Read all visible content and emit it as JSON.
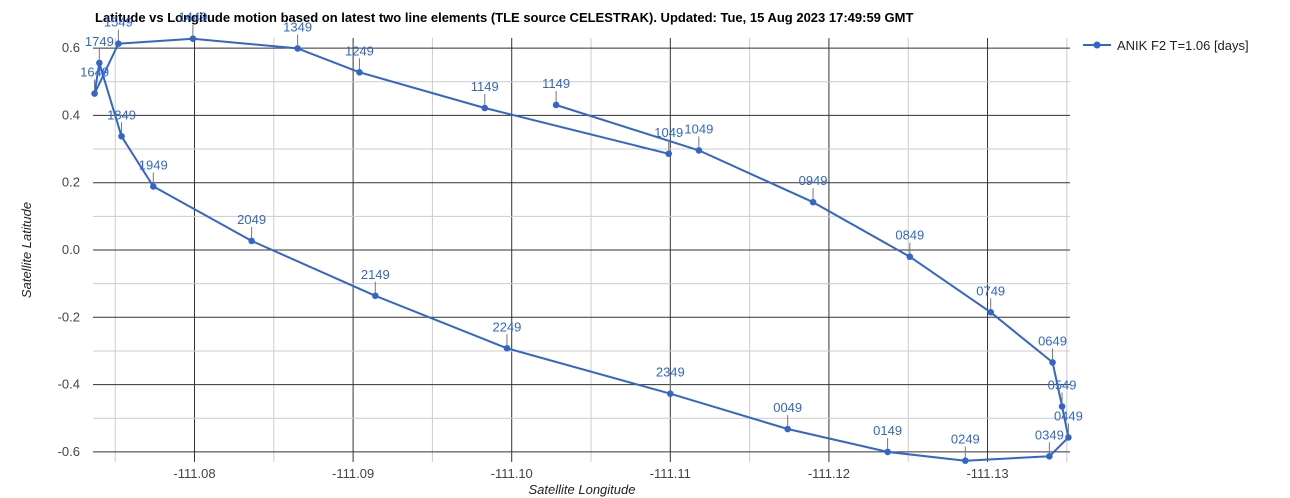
{
  "chart_data": {
    "type": "line",
    "title": "Latitude vs Longitude motion based on latest two line elements (TLE source CELESTRAK). Updated: Tue, 15 Aug 2023 17:49:59 GMT",
    "xlabel": "Satellite Longitude",
    "ylabel": "Satellite Latitude",
    "xlim": [
      -111.0736,
      -111.1352
    ],
    "ylim": [
      -0.6,
      0.6
    ],
    "x_ticks": [
      "-111.08",
      "-111.09",
      "-111.10",
      "-111.11",
      "-111.12",
      "-111.13"
    ],
    "y_ticks": [
      "0.6",
      "0.4",
      "0.2",
      "0.0",
      "-0.2",
      "-0.4",
      "-0.6"
    ],
    "grid": true,
    "legend_position": "top-right",
    "colors": {
      "series": "#3366cc",
      "major_grid": "#333333",
      "minor_grid": "#cccccc"
    },
    "series": [
      {
        "name": "ANIK F2 T=1.06 [days]",
        "points": [
          {
            "label": "1049",
            "x": -111.1099,
            "y": 0.286
          },
          {
            "label": "1149",
            "x": -111.0983,
            "y": 0.422
          },
          {
            "label": "1249",
            "x": -111.0904,
            "y": 0.528
          },
          {
            "label": "1349",
            "x": -111.0865,
            "y": 0.599
          },
          {
            "label": "1449",
            "x": -111.0799,
            "y": 0.628
          },
          {
            "label": "1549",
            "x": -111.0752,
            "y": 0.613
          },
          {
            "label": "1649",
            "x": -111.0737,
            "y": 0.465
          },
          {
            "label": "1749",
            "x": -111.074,
            "y": 0.556
          },
          {
            "label": "1849",
            "x": -111.0754,
            "y": 0.338
          },
          {
            "label": "1949",
            "x": -111.0774,
            "y": 0.189
          },
          {
            "label": "2049",
            "x": -111.0836,
            "y": 0.027
          },
          {
            "label": "2149",
            "x": -111.0914,
            "y": -0.136
          },
          {
            "label": "2249",
            "x": -111.0997,
            "y": -0.292
          },
          {
            "label": "2349",
            "x": -111.11,
            "y": -0.427
          },
          {
            "label": "0049",
            "x": -111.1174,
            "y": -0.532
          },
          {
            "label": "0149",
            "x": -111.1237,
            "y": -0.6
          },
          {
            "label": "0249",
            "x": -111.1286,
            "y": -0.626
          },
          {
            "label": "0349",
            "x": -111.1339,
            "y": -0.613
          },
          {
            "label": "0449",
            "x": -111.1351,
            "y": -0.557
          },
          {
            "label": "0549",
            "x": -111.1347,
            "y": -0.465
          },
          {
            "label": "0649",
            "x": -111.1341,
            "y": -0.334
          },
          {
            "label": "0749",
            "x": -111.1302,
            "y": -0.185
          },
          {
            "label": "0849",
            "x": -111.1251,
            "y": -0.02
          },
          {
            "label": "0949",
            "x": -111.119,
            "y": 0.142
          },
          {
            "label": "1049",
            "x": -111.1118,
            "y": 0.296
          },
          {
            "label": "1149",
            "x": -111.1028,
            "y": 0.431
          }
        ]
      }
    ]
  }
}
